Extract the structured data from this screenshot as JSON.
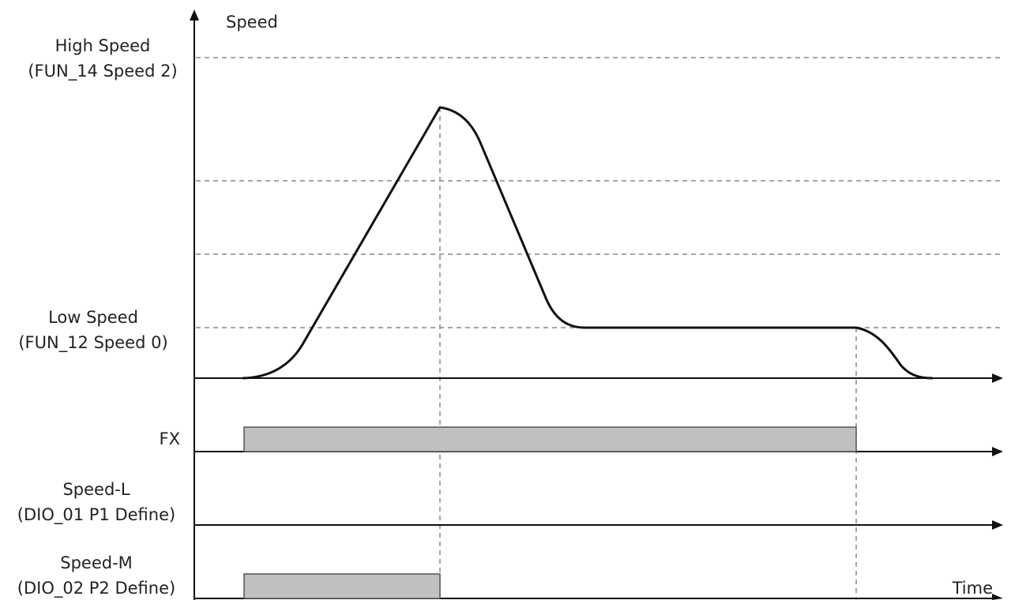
{
  "labels": {
    "y_axis": "Speed",
    "x_axis": "Time",
    "high_speed_line1": "High Speed",
    "high_speed_line2": "(FUN_14 Speed 2)",
    "low_speed_line1": "Low Speed",
    "low_speed_line2": "(FUN_12 Speed 0)",
    "fx": "FX",
    "speed_l_line1": "Speed-L",
    "speed_l_line2": "(DIO_01 P1 Define)",
    "speed_m_line1": "Speed-M",
    "speed_m_line2": "(DIO_02 P2 Define)"
  },
  "colors": {
    "line": "#111111",
    "dashed_guides": "#888888",
    "signal_fill": "#c0c0c0"
  },
  "signals": [
    {
      "name": "FX",
      "state": "on from run start until deceleration to stop"
    },
    {
      "name": "Speed-L",
      "state": "off"
    },
    {
      "name": "Speed-M",
      "state": "on from run start until peak speed"
    }
  ]
}
